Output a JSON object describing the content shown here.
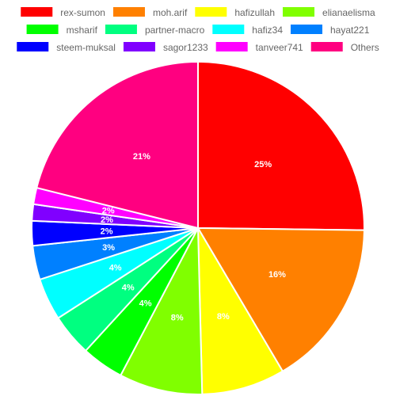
{
  "chart_data": {
    "type": "pie",
    "title": "",
    "legend_position": "top",
    "label_format": "percent",
    "slices": [
      {
        "name": "rex-sumon",
        "value": 25.2,
        "color": "#ff0000"
      },
      {
        "name": "moh.arif",
        "value": 16.3,
        "color": "#ff8000"
      },
      {
        "name": "hafizullah",
        "value": 8.1,
        "color": "#ffff00"
      },
      {
        "name": "elianaelisma",
        "value": 8.1,
        "color": "#80ff00"
      },
      {
        "name": "msharif",
        "value": 4.1,
        "color": "#00ff00"
      },
      {
        "name": "partner-macro",
        "value": 4.1,
        "color": "#00ff80"
      },
      {
        "name": "hafiz34",
        "value": 4.1,
        "color": "#00ffff"
      },
      {
        "name": "hayat221",
        "value": 3.3,
        "color": "#0080ff"
      },
      {
        "name": "steem-muksal",
        "value": 2.4,
        "color": "#0000ff"
      },
      {
        "name": "sagor1233",
        "value": 1.6,
        "color": "#8000ff"
      },
      {
        "name": "tanveer741",
        "value": 1.6,
        "color": "#ff00ff"
      },
      {
        "name": "Others",
        "value": 21.1,
        "color": "#ff0080"
      }
    ]
  }
}
